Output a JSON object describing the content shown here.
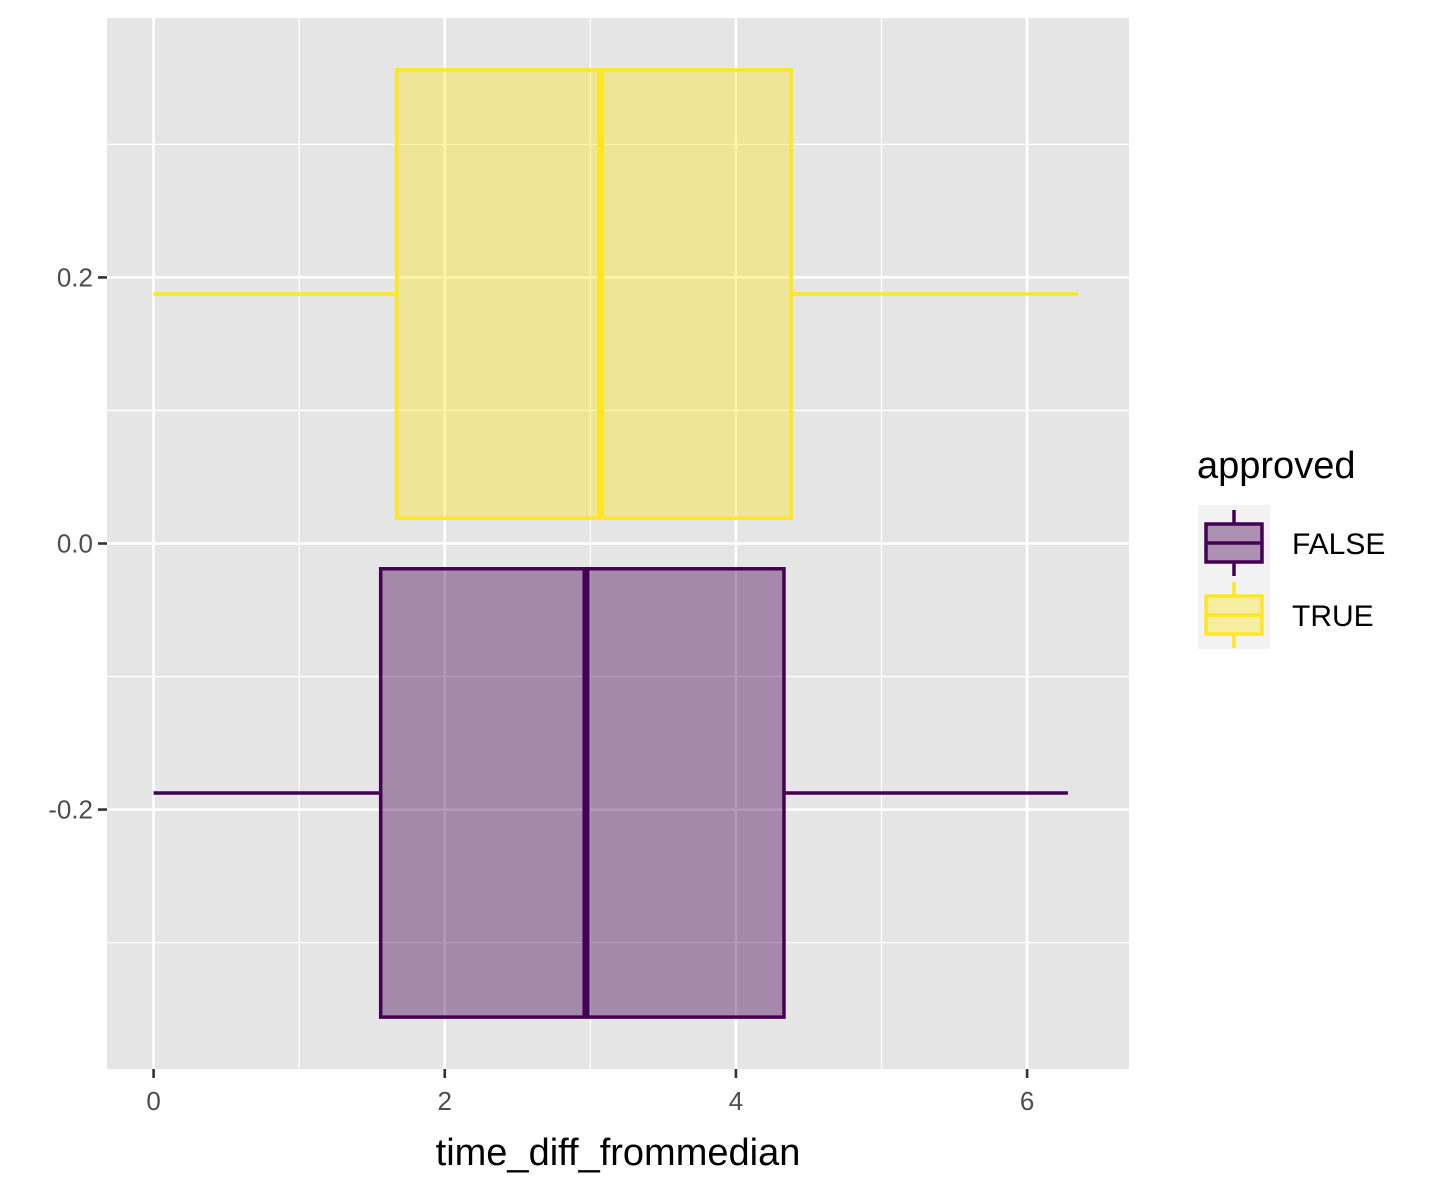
{
  "chart_data": {
    "type": "boxplot",
    "orientation": "horizontal",
    "xlabel": "time_diff_frommedian",
    "ylabel": "",
    "xlim": [
      -0.32,
      6.7
    ],
    "ylim": [
      -0.395,
      0.395
    ],
    "x_ticks": [
      0,
      2,
      4,
      6
    ],
    "x_tick_labels": [
      "0",
      "2",
      "4",
      "6"
    ],
    "y_ticks": [
      -0.2,
      0.0,
      0.2
    ],
    "y_tick_labels": [
      "-0.2",
      "0.0",
      "0.2"
    ],
    "grid": true,
    "legend": {
      "title": "approved",
      "position": "right",
      "entries": [
        "FALSE",
        "TRUE"
      ]
    },
    "series": [
      {
        "name": "FALSE",
        "color": "#440154",
        "fill": "#a08ba6",
        "y_center": -0.1875,
        "box_y": [
          -0.356,
          -0.019
        ],
        "min": 0.0,
        "q1": 1.56,
        "median": 2.97,
        "q3": 4.33,
        "max": 6.28
      },
      {
        "name": "TRUE",
        "color": "#fde725",
        "fill": "#efe597",
        "y_center": 0.1875,
        "box_y": [
          0.019,
          0.356
        ],
        "min": 0.0,
        "q1": 1.67,
        "median": 3.07,
        "q3": 4.38,
        "max": 6.35
      }
    ]
  }
}
